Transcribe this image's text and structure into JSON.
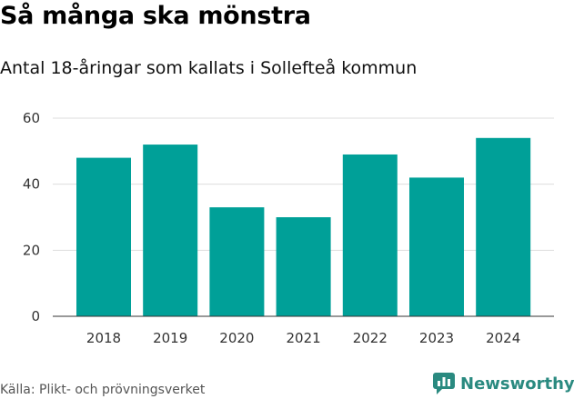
{
  "header": {
    "title": "Så många ska mönstra",
    "subtitle": "Antal 18-åringar som kallats i Sollefteå kommun"
  },
  "footer": {
    "source": "Källa: Plikt- och prövningsverket",
    "brand": "Newsworthy",
    "brand_icon": "newsworthy-logo-icon"
  },
  "colors": {
    "bar": "#00a098",
    "brand": "#2a8a80"
  },
  "chart_data": {
    "type": "bar",
    "title": "Så många ska mönstra",
    "subtitle": "Antal 18-åringar som kallats i Sollefteå kommun",
    "xlabel": "",
    "ylabel": "",
    "categories": [
      "2018",
      "2019",
      "2020",
      "2021",
      "2022",
      "2023",
      "2024"
    ],
    "values": [
      48,
      52,
      33,
      30,
      49,
      42,
      54
    ],
    "ylim": [
      0,
      60
    ],
    "yticks": [
      "0",
      "20",
      "40",
      "60"
    ],
    "grid": true,
    "legend": "none"
  }
}
